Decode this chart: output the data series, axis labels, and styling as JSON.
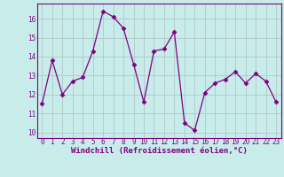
{
  "x": [
    0,
    1,
    2,
    3,
    4,
    5,
    6,
    7,
    8,
    9,
    10,
    11,
    12,
    13,
    14,
    15,
    16,
    17,
    18,
    19,
    20,
    21,
    22,
    23
  ],
  "y": [
    11.5,
    13.8,
    12.0,
    12.7,
    12.9,
    14.3,
    16.4,
    16.1,
    15.5,
    13.6,
    11.6,
    14.3,
    14.4,
    15.3,
    10.5,
    10.1,
    12.1,
    12.6,
    12.8,
    13.2,
    12.6,
    13.1,
    12.7,
    11.6
  ],
  "xlabel": "Windchill (Refroidissement éolien,°C)",
  "ylim": [
    9.7,
    16.8
  ],
  "yticks": [
    10,
    11,
    12,
    13,
    14,
    15,
    16
  ],
  "xticks": [
    0,
    1,
    2,
    3,
    4,
    5,
    6,
    7,
    8,
    9,
    10,
    11,
    12,
    13,
    14,
    15,
    16,
    17,
    18,
    19,
    20,
    21,
    22,
    23
  ],
  "line_color": "#800080",
  "marker": "D",
  "marker_size": 2.5,
  "bg_color": "#c8ecea",
  "grid_color": "#b0c8c8",
  "tick_fontsize": 5.5,
  "xlabel_fontsize": 6.5
}
